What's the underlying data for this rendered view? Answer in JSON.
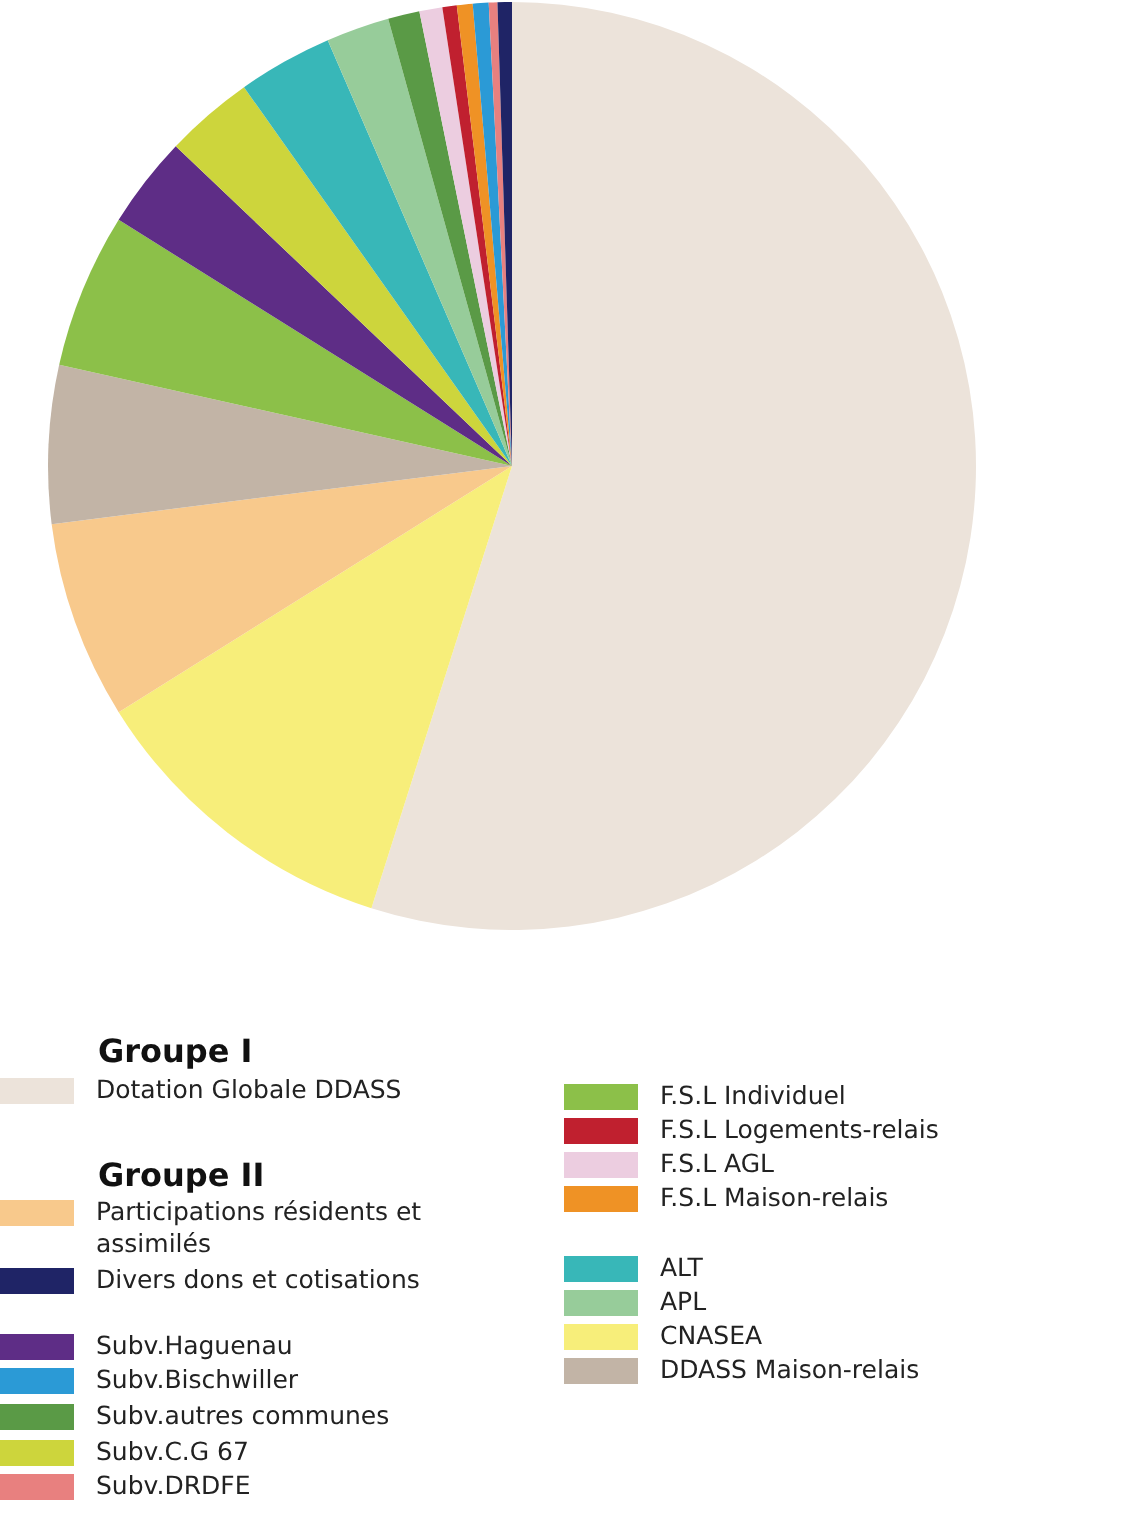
{
  "chart_data": {
    "type": "pie",
    "categories": [
      "Dotation Globale DDASS",
      "CNASEA",
      "Participations résidents et assimilés",
      "DDASS Maison-relais",
      "F.S.L  Individuel",
      "Subv.Haguenau",
      "Subv.C.G 67",
      "ALT",
      "APL",
      "Subv.autres communes",
      "F.S.L  AGL",
      "F.S.L  Logements-relais",
      "F.S.L Maison-relais",
      "Subv.Bischwiller",
      "Subv.DRDFE",
      "Divers dons et cotisations"
    ],
    "values": [
      54.9,
      11.2,
      6.9,
      5.5,
      5.4,
      3.2,
      3.1,
      3.3,
      2.2,
      1.1,
      0.8,
      0.5,
      0.55,
      0.55,
      0.3,
      0.5
    ],
    "colors": [
      "#ece3da",
      "#f7ee7a",
      "#f8c98c",
      "#c2b4a6",
      "#8cc049",
      "#5e2d86",
      "#cdd53c",
      "#38b7b8",
      "#97cc9a",
      "#5a9a46",
      "#eccde0",
      "#c0202f",
      "#ef9225",
      "#2b9ad6",
      "#e8807f",
      "#1f2466"
    ],
    "annotations": [
      "Groupe I",
      "Groupe II"
    ],
    "legend": "bottom"
  }
}
